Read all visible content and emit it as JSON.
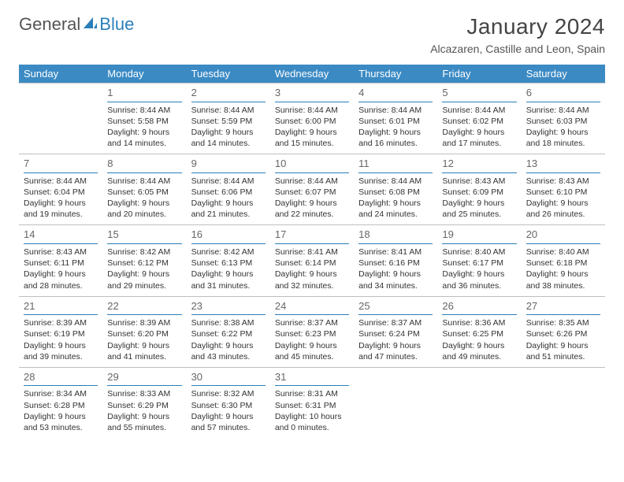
{
  "brand": {
    "part1": "General",
    "part2": "Blue"
  },
  "title": "January 2024",
  "location": "Alcazaren, Castille and Leon, Spain",
  "colors": {
    "header_bg": "#3b8ac4",
    "header_fg": "#ffffff",
    "daynum_rule": "#2a7fba",
    "week_rule": "#bfbfbf",
    "text": "#333333"
  },
  "font": {
    "family": "Arial",
    "day_fontsize": 10.5,
    "header_fontsize": 13,
    "title_fontsize": 28
  },
  "weekdays": [
    "Sunday",
    "Monday",
    "Tuesday",
    "Wednesday",
    "Thursday",
    "Friday",
    "Saturday"
  ],
  "weeks": [
    [
      null,
      {
        "n": "1",
        "sr": "8:44 AM",
        "ss": "5:58 PM",
        "dl": "9 hours and 14 minutes."
      },
      {
        "n": "2",
        "sr": "8:44 AM",
        "ss": "5:59 PM",
        "dl": "9 hours and 14 minutes."
      },
      {
        "n": "3",
        "sr": "8:44 AM",
        "ss": "6:00 PM",
        "dl": "9 hours and 15 minutes."
      },
      {
        "n": "4",
        "sr": "8:44 AM",
        "ss": "6:01 PM",
        "dl": "9 hours and 16 minutes."
      },
      {
        "n": "5",
        "sr": "8:44 AM",
        "ss": "6:02 PM",
        "dl": "9 hours and 17 minutes."
      },
      {
        "n": "6",
        "sr": "8:44 AM",
        "ss": "6:03 PM",
        "dl": "9 hours and 18 minutes."
      }
    ],
    [
      {
        "n": "7",
        "sr": "8:44 AM",
        "ss": "6:04 PM",
        "dl": "9 hours and 19 minutes."
      },
      {
        "n": "8",
        "sr": "8:44 AM",
        "ss": "6:05 PM",
        "dl": "9 hours and 20 minutes."
      },
      {
        "n": "9",
        "sr": "8:44 AM",
        "ss": "6:06 PM",
        "dl": "9 hours and 21 minutes."
      },
      {
        "n": "10",
        "sr": "8:44 AM",
        "ss": "6:07 PM",
        "dl": "9 hours and 22 minutes."
      },
      {
        "n": "11",
        "sr": "8:44 AM",
        "ss": "6:08 PM",
        "dl": "9 hours and 24 minutes."
      },
      {
        "n": "12",
        "sr": "8:43 AM",
        "ss": "6:09 PM",
        "dl": "9 hours and 25 minutes."
      },
      {
        "n": "13",
        "sr": "8:43 AM",
        "ss": "6:10 PM",
        "dl": "9 hours and 26 minutes."
      }
    ],
    [
      {
        "n": "14",
        "sr": "8:43 AM",
        "ss": "6:11 PM",
        "dl": "9 hours and 28 minutes."
      },
      {
        "n": "15",
        "sr": "8:42 AM",
        "ss": "6:12 PM",
        "dl": "9 hours and 29 minutes."
      },
      {
        "n": "16",
        "sr": "8:42 AM",
        "ss": "6:13 PM",
        "dl": "9 hours and 31 minutes."
      },
      {
        "n": "17",
        "sr": "8:41 AM",
        "ss": "6:14 PM",
        "dl": "9 hours and 32 minutes."
      },
      {
        "n": "18",
        "sr": "8:41 AM",
        "ss": "6:16 PM",
        "dl": "9 hours and 34 minutes."
      },
      {
        "n": "19",
        "sr": "8:40 AM",
        "ss": "6:17 PM",
        "dl": "9 hours and 36 minutes."
      },
      {
        "n": "20",
        "sr": "8:40 AM",
        "ss": "6:18 PM",
        "dl": "9 hours and 38 minutes."
      }
    ],
    [
      {
        "n": "21",
        "sr": "8:39 AM",
        "ss": "6:19 PM",
        "dl": "9 hours and 39 minutes."
      },
      {
        "n": "22",
        "sr": "8:39 AM",
        "ss": "6:20 PM",
        "dl": "9 hours and 41 minutes."
      },
      {
        "n": "23",
        "sr": "8:38 AM",
        "ss": "6:22 PM",
        "dl": "9 hours and 43 minutes."
      },
      {
        "n": "24",
        "sr": "8:37 AM",
        "ss": "6:23 PM",
        "dl": "9 hours and 45 minutes."
      },
      {
        "n": "25",
        "sr": "8:37 AM",
        "ss": "6:24 PM",
        "dl": "9 hours and 47 minutes."
      },
      {
        "n": "26",
        "sr": "8:36 AM",
        "ss": "6:25 PM",
        "dl": "9 hours and 49 minutes."
      },
      {
        "n": "27",
        "sr": "8:35 AM",
        "ss": "6:26 PM",
        "dl": "9 hours and 51 minutes."
      }
    ],
    [
      {
        "n": "28",
        "sr": "8:34 AM",
        "ss": "6:28 PM",
        "dl": "9 hours and 53 minutes."
      },
      {
        "n": "29",
        "sr": "8:33 AM",
        "ss": "6:29 PM",
        "dl": "9 hours and 55 minutes."
      },
      {
        "n": "30",
        "sr": "8:32 AM",
        "ss": "6:30 PM",
        "dl": "9 hours and 57 minutes."
      },
      {
        "n": "31",
        "sr": "8:31 AM",
        "ss": "6:31 PM",
        "dl": "10 hours and 0 minutes."
      },
      null,
      null,
      null
    ]
  ],
  "labels": {
    "sunrise": "Sunrise:",
    "sunset": "Sunset:",
    "daylight": "Daylight:"
  }
}
